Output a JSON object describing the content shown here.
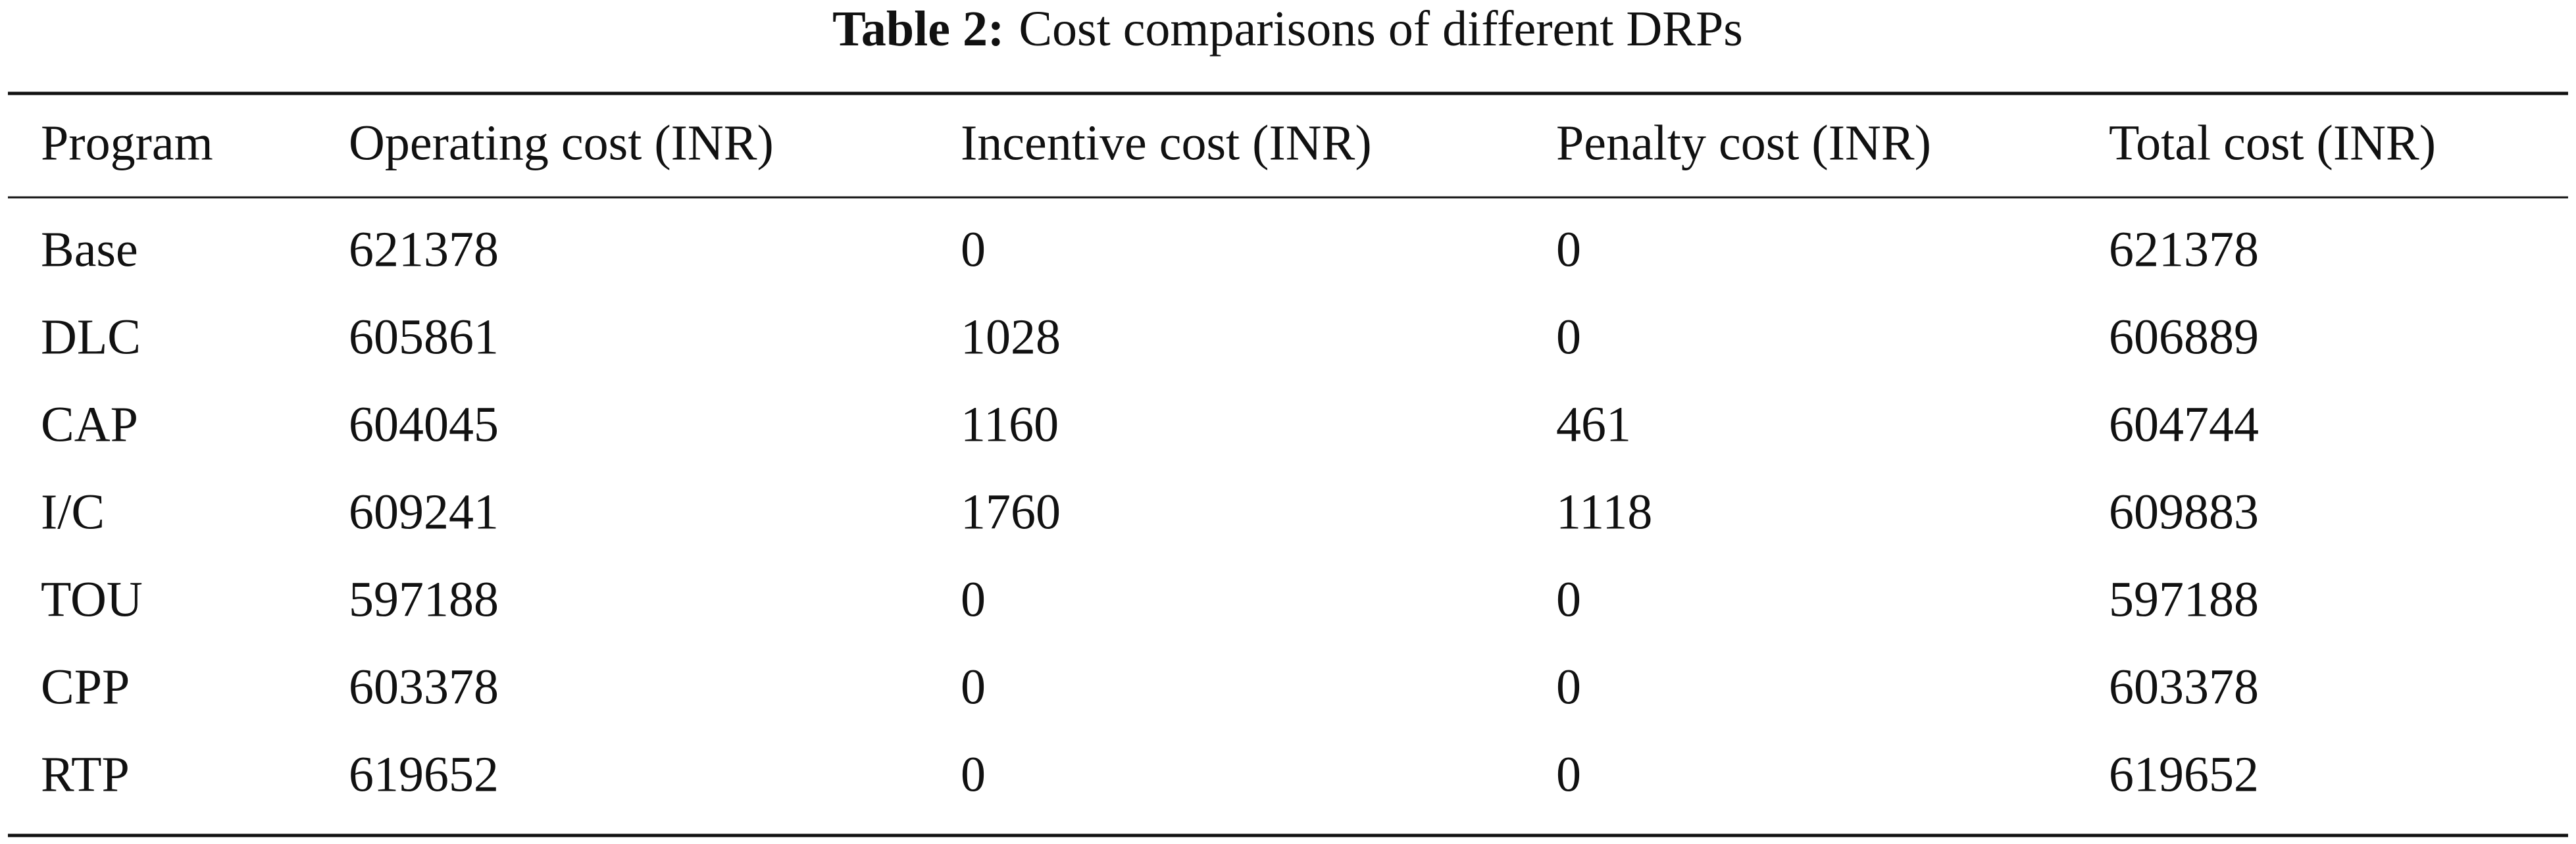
{
  "table": {
    "label": "Table 2:",
    "caption": "Cost comparisons of different DRPs",
    "columns": [
      "Program",
      "Operating cost (INR)",
      "Incentive cost (INR)",
      "Penalty cost (INR)",
      "Total cost (INR)"
    ],
    "rows": [
      [
        "Base",
        621378,
        0,
        0,
        621378
      ],
      [
        "DLC",
        605861,
        1028,
        0,
        606889
      ],
      [
        "CAP",
        604045,
        1160,
        461,
        604744
      ],
      [
        "I/C",
        609241,
        1760,
        1118,
        609883
      ],
      [
        "TOU",
        597188,
        0,
        0,
        597188
      ],
      [
        "CPP",
        603378,
        0,
        0,
        603378
      ],
      [
        "RTP",
        619652,
        0,
        0,
        619652
      ]
    ]
  }
}
